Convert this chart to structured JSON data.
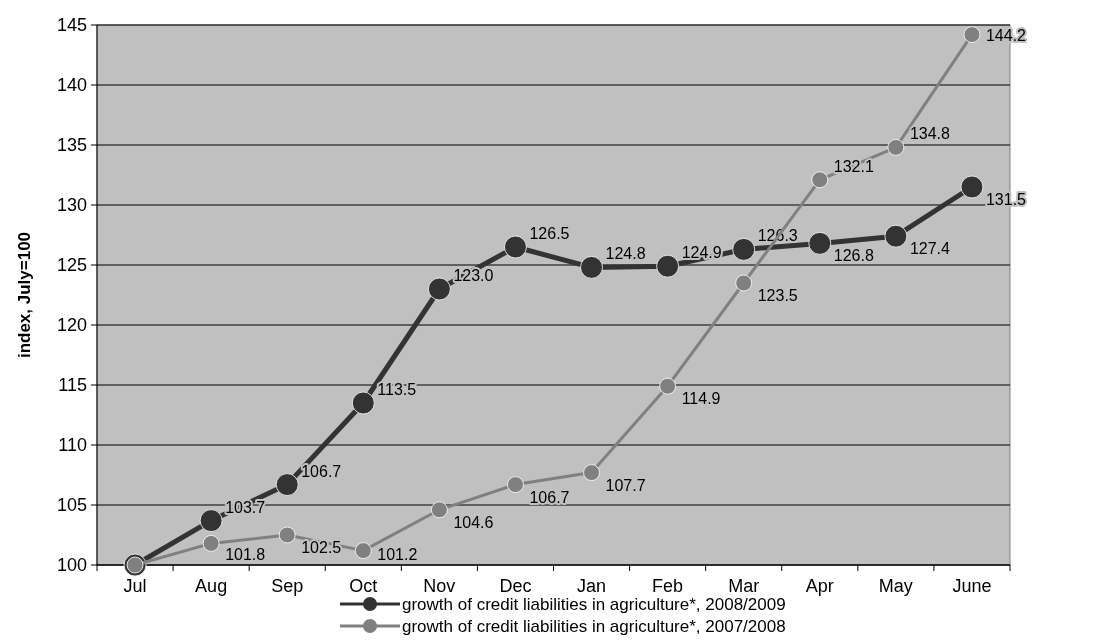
{
  "chart_data": {
    "type": "line",
    "ylabel": "index, July=100",
    "categories": [
      "Jul",
      "Aug",
      "Sep",
      "Oct",
      "Nov",
      "Dec",
      "Jan",
      "Feb",
      "Mar",
      "Apr",
      "May",
      "June"
    ],
    "series": [
      {
        "name": "growth of credit liabilities in agriculture*, 2008/2009",
        "color": "#333333",
        "values": [
          100,
          103.7,
          106.7,
          113.5,
          123.0,
          126.5,
          124.8,
          124.9,
          126.3,
          126.8,
          127.4,
          131.5
        ],
        "value_labels": [
          null,
          "103.7",
          "106.7",
          "113.5",
          "123.0",
          "126.5",
          "124.8",
          "124.9",
          "126.3",
          "126.8",
          "127.4",
          "131.5"
        ]
      },
      {
        "name": "growth of credit liabilities in agriculture*, 2007/2008",
        "color": "#808080",
        "values": [
          100,
          101.8,
          102.5,
          101.2,
          104.6,
          106.7,
          107.7,
          114.9,
          123.5,
          132.1,
          134.8,
          144.2
        ],
        "value_labels": [
          null,
          "101.8",
          "102.5",
          "101.2",
          "104.6",
          "106.7",
          "107.7",
          "114.9",
          "123.5",
          "132.1",
          "134.8",
          "144.2"
        ]
      }
    ],
    "ylim": [
      100,
      145
    ],
    "yticks": [
      100,
      105,
      110,
      115,
      120,
      125,
      130,
      135,
      140,
      145
    ],
    "grid": "y",
    "legend": "bottom",
    "marker": "circle",
    "line_style": "solid"
  }
}
